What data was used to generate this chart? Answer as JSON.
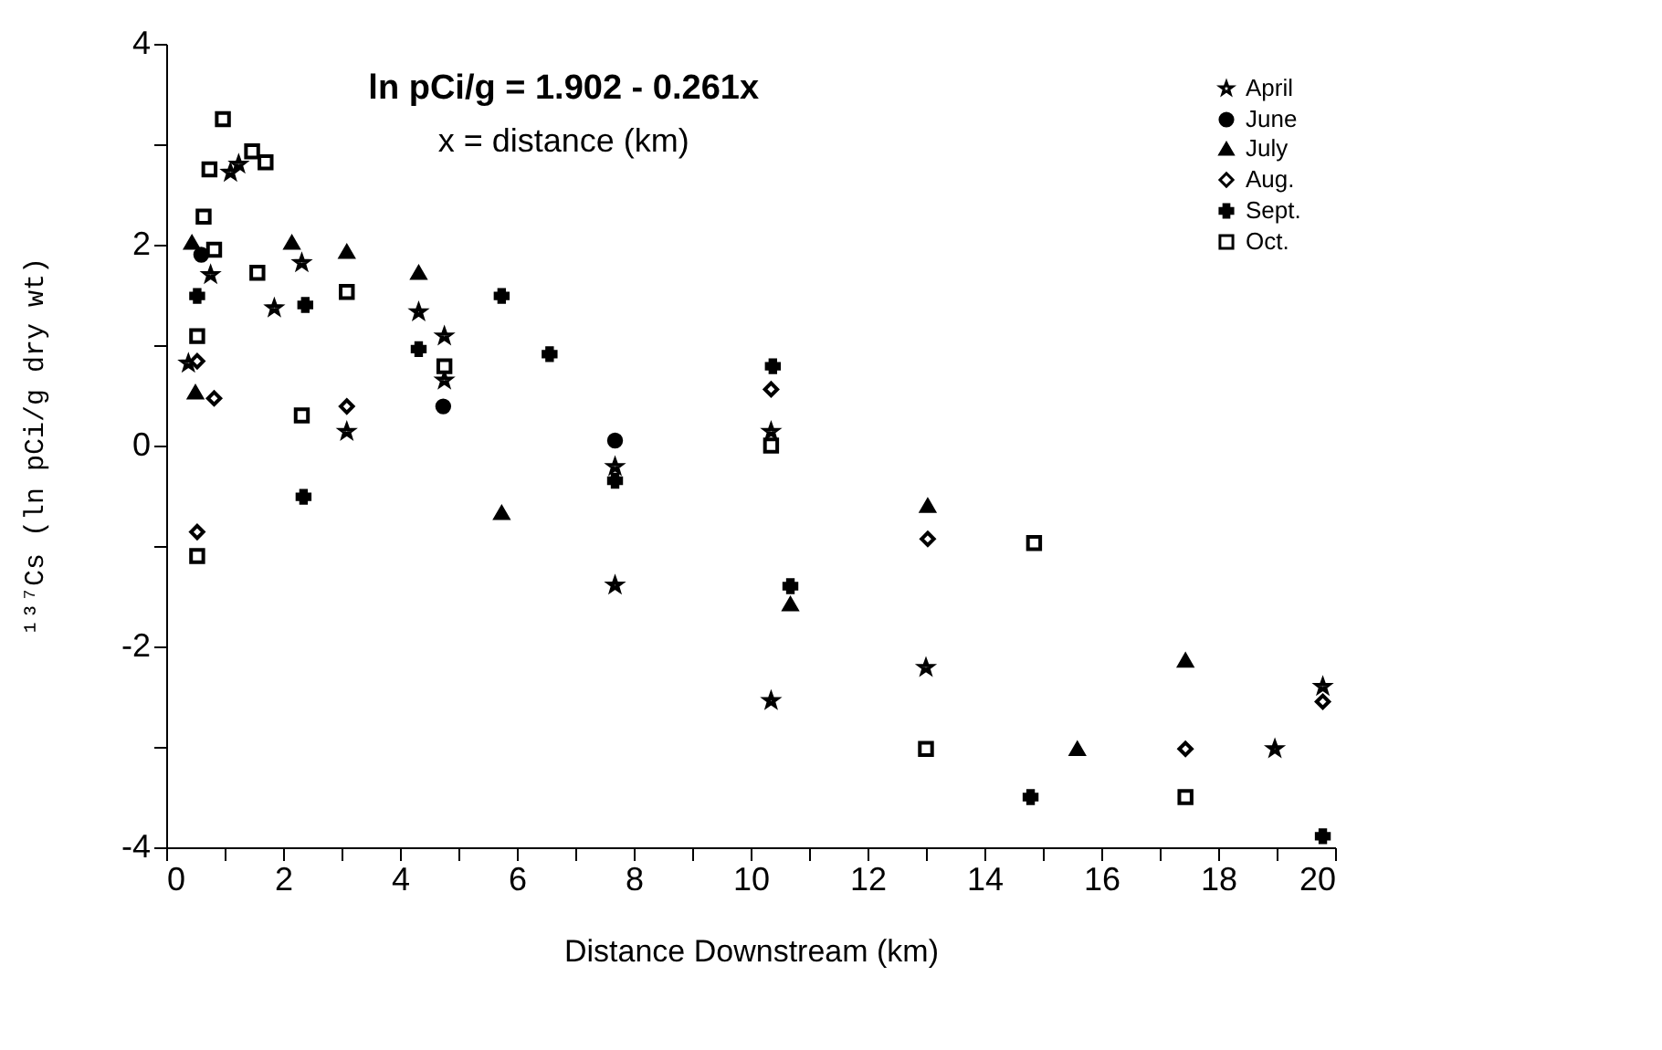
{
  "chart_data": {
    "type": "scatter",
    "xlabel": "Distance Downstream (km)",
    "ylabel": "¹³⁷Cs (ln pCi/g dry wt)",
    "annotations": [
      "ln pCi/g = 1.902 - 0.261x",
      "x = distance (km)"
    ],
    "xlim": [
      0,
      20
    ],
    "xticks": [
      0,
      {
        "value": 1,
        "label": null
      },
      2,
      {
        "value": 3,
        "label": null
      },
      4,
      {
        "value": 5,
        "label": null
      },
      6,
      {
        "value": 7,
        "label": null
      },
      8,
      {
        "value": 9,
        "label": null
      },
      10,
      {
        "value": 11,
        "label": null
      },
      12,
      {
        "value": 13,
        "label": null
      },
      14,
      {
        "value": 15,
        "label": null
      },
      16,
      {
        "value": 17,
        "label": null
      },
      18,
      {
        "value": 19,
        "label": null
      },
      20
    ],
    "ylim": [
      -4,
      4
    ],
    "yticks": [
      -4,
      {
        "value": -3,
        "label": null
      },
      -2,
      {
        "value": -1,
        "label": null
      },
      0,
      {
        "value": 1,
        "label": null
      },
      2,
      {
        "value": 3,
        "label": null
      },
      4
    ],
    "grid": false,
    "legend": "top right",
    "series": [
      {
        "name": "April",
        "color": "#000000",
        "marker": "star",
        "x": [
          1.24,
          1.1,
          0.76,
          2.32,
          1.85,
          4.32,
          4.76,
          4.76,
          0.38,
          3.09,
          7.68,
          7.68,
          10.35,
          13.0,
          10.35,
          18.97,
          19.79
        ],
        "values": [
          2.8,
          2.72,
          1.7,
          1.82,
          1.37,
          1.33,
          1.09,
          0.65,
          0.82,
          0.14,
          -0.21,
          -1.39,
          0.14,
          -2.21,
          -2.54,
          -3.02,
          -2.4
        ]
      },
      {
        "name": "June",
        "color": "#000000",
        "marker": "circle",
        "x": [
          0.6,
          4.74,
          7.68
        ],
        "values": [
          1.9,
          0.39,
          0.05
        ]
      },
      {
        "name": "July",
        "color": "#000000",
        "marker": "triangle",
        "x": [
          0.44,
          2.15,
          3.09,
          4.32,
          0.5,
          5.74,
          13.03,
          10.68,
          17.44,
          15.59
        ],
        "values": [
          2.02,
          2.02,
          1.93,
          1.72,
          0.53,
          -0.67,
          -0.6,
          -1.58,
          -2.14,
          -3.02
        ]
      },
      {
        "name": "Aug.",
        "color": "#000000",
        "marker": "diamond",
        "x": [
          0.53,
          0.82,
          3.09,
          0.53,
          10.35,
          13.03,
          17.44,
          19.79
        ],
        "values": [
          0.84,
          0.47,
          0.39,
          -0.86,
          0.56,
          -0.93,
          -3.02,
          -2.55
        ]
      },
      {
        "name": "Sept.",
        "color": "#000000",
        "marker": "cross",
        "x": [
          0.53,
          2.38,
          4.32,
          5.74,
          6.56,
          2.35,
          10.38,
          7.68,
          10.68,
          14.79,
          19.79
        ],
        "values": [
          1.49,
          1.4,
          0.96,
          1.49,
          0.91,
          -0.51,
          0.79,
          -0.35,
          -1.4,
          -3.5,
          -3.89
        ]
      },
      {
        "name": "Oct.",
        "color": "#000000",
        "marker": "square",
        "x": [
          0.97,
          0.74,
          1.47,
          1.7,
          0.64,
          0.82,
          1.56,
          3.09,
          4.76,
          0.53,
          2.32,
          0.53,
          10.35,
          14.85,
          13.0,
          17.44
        ],
        "values": [
          3.25,
          2.75,
          2.93,
          2.82,
          2.28,
          1.95,
          1.72,
          1.53,
          0.79,
          1.09,
          0.3,
          -1.1,
          0.0,
          -0.97,
          -3.02,
          -3.5
        ]
      }
    ]
  }
}
